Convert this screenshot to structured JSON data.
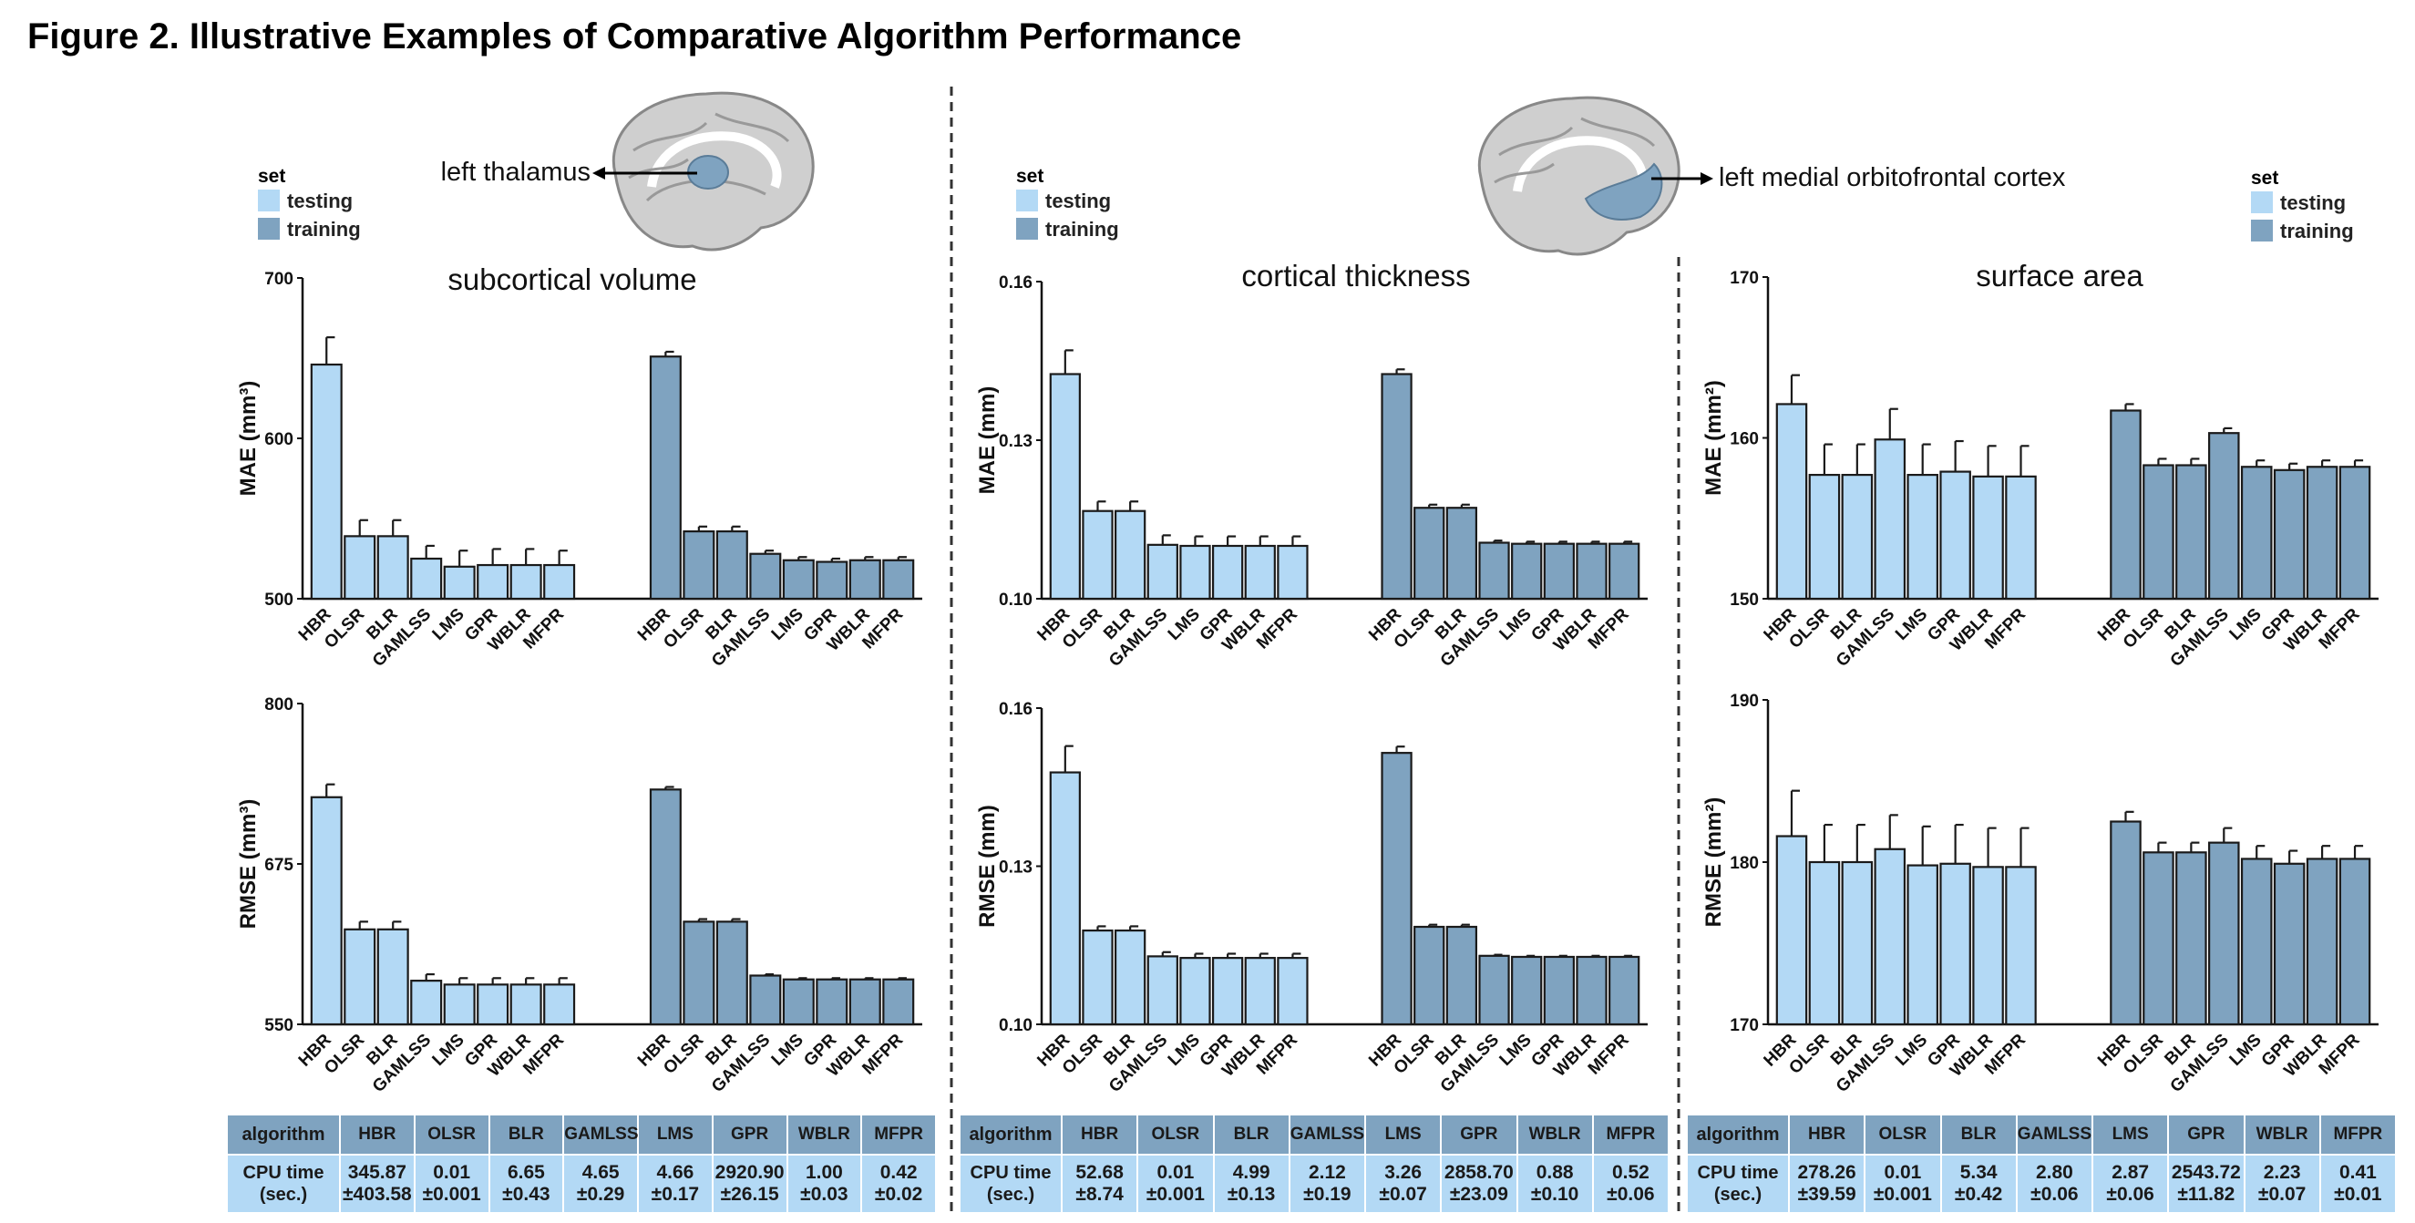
{
  "figure_title": "Figure 2. Illustrative Examples of Comparative Algorithm Performance",
  "legend": {
    "title": "set",
    "items": [
      {
        "label": "testing",
        "color": "#b3d9f5"
      },
      {
        "label": "training",
        "color": "#7fa3c0"
      }
    ]
  },
  "regions": [
    {
      "label": "left thalamus"
    },
    {
      "label": "left medial orbitofrontal cortex"
    }
  ],
  "colors": {
    "testing": "#b3d9f5",
    "training": "#7fa3c0",
    "stroke": "#1a1a1a",
    "brain": "#b5b5b5",
    "highlight": "#7fa3c0"
  },
  "chart_data": [
    {
      "type": "bar",
      "panel": "subcortical volume",
      "metric": "MAE",
      "title": "subcortical volume",
      "ylabel": "MAE (mm³)",
      "ylim": [
        500,
        700
      ],
      "yticks": [
        500,
        600,
        700
      ],
      "categories": [
        "HBR",
        "OLSR",
        "BLR",
        "GAMLSS",
        "LMS",
        "GPR",
        "WBLR",
        "MFPR"
      ],
      "series": [
        {
          "name": "testing",
          "values": [
            646,
            539,
            539,
            525,
            520,
            521,
            521,
            521
          ],
          "errors": [
            17,
            10,
            10,
            8,
            10,
            10,
            10,
            9
          ]
        },
        {
          "name": "training",
          "values": [
            651,
            542,
            542,
            528,
            524,
            523,
            524,
            524
          ],
          "errors": [
            3,
            3,
            3,
            2,
            2,
            2,
            2,
            2
          ]
        }
      ]
    },
    {
      "type": "bar",
      "panel": "subcortical volume",
      "metric": "RMSE",
      "title": "",
      "ylabel": "RMSE (mm³)",
      "ylim": [
        550,
        800
      ],
      "yticks": [
        550,
        675,
        800
      ],
      "categories": [
        "HBR",
        "OLSR",
        "BLR",
        "GAMLSS",
        "LMS",
        "GPR",
        "WBLR",
        "MFPR"
      ],
      "series": [
        {
          "name": "testing",
          "values": [
            727,
            624,
            624,
            584,
            581,
            581,
            581,
            581
          ],
          "errors": [
            10,
            6,
            6,
            5,
            5,
            5,
            5,
            5
          ]
        },
        {
          "name": "training",
          "values": [
            733,
            630,
            630,
            588,
            585,
            585,
            585,
            585
          ],
          "errors": [
            2,
            2,
            2,
            1,
            1,
            1,
            1,
            1
          ]
        }
      ]
    },
    {
      "type": "bar",
      "panel": "cortical thickness",
      "metric": "MAE",
      "title": "cortical thickness",
      "ylabel": "MAE (mm)",
      "ylim": [
        0.1,
        0.16
      ],
      "yticks": [
        0.1,
        0.13,
        0.16
      ],
      "categories": [
        "HBR",
        "OLSR",
        "BLR",
        "GAMLSS",
        "LMS",
        "GPR",
        "WBLR",
        "MFPR"
      ],
      "series": [
        {
          "name": "testing",
          "values": [
            0.1425,
            0.1166,
            0.1166,
            0.1102,
            0.11,
            0.11,
            0.11,
            0.11
          ],
          "errors": [
            0.0045,
            0.0018,
            0.0018,
            0.0018,
            0.0018,
            0.0018,
            0.0018,
            0.0018
          ]
        },
        {
          "name": "training",
          "values": [
            0.1425,
            0.1172,
            0.1172,
            0.1106,
            0.1104,
            0.1104,
            0.1104,
            0.1104
          ],
          "errors": [
            0.0009,
            0.0006,
            0.0006,
            0.0004,
            0.0004,
            0.0004,
            0.0004,
            0.0004
          ]
        }
      ]
    },
    {
      "type": "bar",
      "panel": "cortical thickness",
      "metric": "RMSE",
      "title": "",
      "ylabel": "RMSE (mm)",
      "ylim": [
        0.1,
        0.16
      ],
      "yticks": [
        0.1,
        0.13,
        0.16
      ],
      "categories": [
        "HBR",
        "OLSR",
        "BLR",
        "GAMLSS",
        "LMS",
        "GPR",
        "WBLR",
        "MFPR"
      ],
      "series": [
        {
          "name": "testing",
          "values": [
            0.1478,
            0.1178,
            0.1178,
            0.1129,
            0.1126,
            0.1126,
            0.1126,
            0.1126
          ],
          "errors": [
            0.005,
            0.0008,
            0.0008,
            0.0008,
            0.0008,
            0.0008,
            0.0008,
            0.0008
          ]
        },
        {
          "name": "training",
          "values": [
            0.1515,
            0.1185,
            0.1185,
            0.113,
            0.1128,
            0.1128,
            0.1128,
            0.1128
          ],
          "errors": [
            0.0012,
            0.0004,
            0.0004,
            0.0002,
            0.0002,
            0.0002,
            0.0002,
            0.0002
          ]
        }
      ]
    },
    {
      "type": "bar",
      "panel": "surface area",
      "metric": "MAE",
      "title": "surface area",
      "ylabel": "MAE (mm²)",
      "ylim": [
        150,
        170
      ],
      "yticks": [
        150,
        160,
        170
      ],
      "categories": [
        "HBR",
        "OLSR",
        "BLR",
        "GAMLSS",
        "LMS",
        "GPR",
        "WBLR",
        "MFPR"
      ],
      "series": [
        {
          "name": "testing",
          "values": [
            162.1,
            157.7,
            157.7,
            159.9,
            157.7,
            157.9,
            157.6,
            157.6
          ],
          "errors": [
            1.8,
            1.9,
            1.9,
            1.9,
            1.9,
            1.9,
            1.9,
            1.9
          ]
        },
        {
          "name": "training",
          "values": [
            161.7,
            158.3,
            158.3,
            160.3,
            158.2,
            158.0,
            158.2,
            158.2
          ],
          "errors": [
            0.4,
            0.4,
            0.4,
            0.3,
            0.4,
            0.4,
            0.4,
            0.4
          ]
        }
      ]
    },
    {
      "type": "bar",
      "panel": "surface area",
      "metric": "RMSE",
      "title": "",
      "ylabel": "RMSE (mm²)",
      "ylim": [
        170,
        190
      ],
      "yticks": [
        170,
        180,
        190
      ],
      "categories": [
        "HBR",
        "OLSR",
        "BLR",
        "GAMLSS",
        "LMS",
        "GPR",
        "WBLR",
        "MFPR"
      ],
      "series": [
        {
          "name": "testing",
          "values": [
            181.6,
            180.0,
            180.0,
            180.8,
            179.8,
            179.9,
            179.7,
            179.7
          ],
          "errors": [
            2.8,
            2.3,
            2.3,
            2.1,
            2.4,
            2.4,
            2.4,
            2.4
          ]
        },
        {
          "name": "training",
          "values": [
            182.5,
            180.6,
            180.6,
            181.2,
            180.2,
            179.9,
            180.2,
            180.2
          ],
          "errors": [
            0.6,
            0.6,
            0.6,
            0.9,
            0.8,
            0.8,
            0.8,
            0.8
          ]
        }
      ]
    }
  ],
  "cpu_tables": [
    {
      "header_label": "algorithm",
      "row_label": [
        "CPU time",
        "(sec.)"
      ],
      "algorithms": [
        "HBR",
        "OLSR",
        "BLR",
        "GAMLSS",
        "LMS",
        "GPR",
        "WBLR",
        "MFPR"
      ],
      "mean": [
        "345.87",
        "0.01",
        "6.65",
        "4.65",
        "4.66",
        "2920.90",
        "1.00",
        "0.42"
      ],
      "sd": [
        "±403.58",
        "±0.001",
        "±0.43",
        "±0.29",
        "±0.17",
        "±26.15",
        "±0.03",
        "±0.02"
      ]
    },
    {
      "header_label": "algorithm",
      "row_label": [
        "CPU time",
        "(sec.)"
      ],
      "algorithms": [
        "HBR",
        "OLSR",
        "BLR",
        "GAMLSS",
        "LMS",
        "GPR",
        "WBLR",
        "MFPR"
      ],
      "mean": [
        "52.68",
        "0.01",
        "4.99",
        "2.12",
        "3.26",
        "2858.70",
        "0.88",
        "0.52"
      ],
      "sd": [
        "±8.74",
        "±0.001",
        "±0.13",
        "±0.19",
        "±0.07",
        "±23.09",
        "±0.10",
        "±0.06"
      ]
    },
    {
      "header_label": "algorithm",
      "row_label": [
        "CPU time",
        "(sec.)"
      ],
      "algorithms": [
        "HBR",
        "OLSR",
        "BLR",
        "GAMLSS",
        "LMS",
        "GPR",
        "WBLR",
        "MFPR"
      ],
      "mean": [
        "278.26",
        "0.01",
        "5.34",
        "2.80",
        "2.87",
        "2543.72",
        "2.23",
        "0.41"
      ],
      "sd": [
        "±39.59",
        "±0.001",
        "±0.42",
        "±0.06",
        "±0.06",
        "±11.82",
        "±0.07",
        "±0.01"
      ]
    }
  ]
}
